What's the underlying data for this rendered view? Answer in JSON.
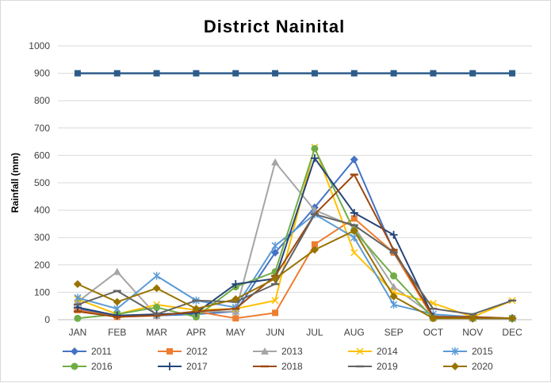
{
  "chart_data": {
    "type": "line",
    "title": "District Nainital",
    "xlabel": "",
    "ylabel": "Rainfall (mm)",
    "ylim": [
      0,
      1000
    ],
    "yticks": [
      0,
      100,
      200,
      300,
      400,
      500,
      600,
      700,
      800,
      900,
      1000
    ],
    "grid": true,
    "legend_position": "bottom",
    "categories": [
      "JAN",
      "FEB",
      "MAR",
      "APR",
      "MAY",
      "JUN",
      "JUL",
      "AUG",
      "SEP",
      "OCT",
      "NOV",
      "DEC"
    ],
    "reference_line": {
      "value": 900,
      "color": "#2e5c8a",
      "marker": "square"
    },
    "series": [
      {
        "name": "2011",
        "color": "#4472c4",
        "marker": "diamond",
        "values": [
          40,
          15,
          15,
          20,
          30,
          245,
          410,
          585,
          250,
          10,
          5,
          5
        ]
      },
      {
        "name": "2012",
        "color": "#ed7d31",
        "marker": "square",
        "values": [
          35,
          10,
          15,
          30,
          5,
          25,
          275,
          370,
          245,
          5,
          5,
          5
        ]
      },
      {
        "name": "2013",
        "color": "#a5a5a5",
        "marker": "triangle",
        "values": [
          65,
          175,
          15,
          30,
          30,
          575,
          400,
          340,
          120,
          15,
          5,
          5
        ]
      },
      {
        "name": "2014",
        "color": "#ffc000",
        "marker": "x",
        "values": [
          75,
          20,
          55,
          35,
          40,
          70,
          630,
          245,
          100,
          60,
          10,
          70
        ]
      },
      {
        "name": "2015",
        "color": "#5b9bd5",
        "marker": "star",
        "values": [
          80,
          40,
          160,
          70,
          45,
          270,
          385,
          300,
          55,
          20,
          10,
          5
        ]
      },
      {
        "name": "2016",
        "color": "#70ad47",
        "marker": "circle",
        "values": [
          5,
          20,
          45,
          10,
          120,
          175,
          625,
          325,
          160,
          5,
          5,
          5
        ]
      },
      {
        "name": "2017",
        "color": "#264478",
        "marker": "plus",
        "values": [
          45,
          15,
          20,
          25,
          130,
          150,
          590,
          390,
          310,
          10,
          5,
          5
        ]
      },
      {
        "name": "2018",
        "color": "#9e480e",
        "marker": "dash",
        "values": [
          30,
          10,
          15,
          30,
          40,
          160,
          385,
          530,
          255,
          10,
          10,
          5
        ]
      },
      {
        "name": "2019",
        "color": "#636363",
        "marker": "dash",
        "values": [
          55,
          105,
          20,
          70,
          65,
          130,
          385,
          345,
          245,
          40,
          20,
          70
        ]
      },
      {
        "name": "2020",
        "color": "#997300",
        "marker": "diamond",
        "values": [
          130,
          65,
          115,
          40,
          75,
          150,
          255,
          325,
          85,
          5,
          5,
          5
        ]
      }
    ]
  }
}
